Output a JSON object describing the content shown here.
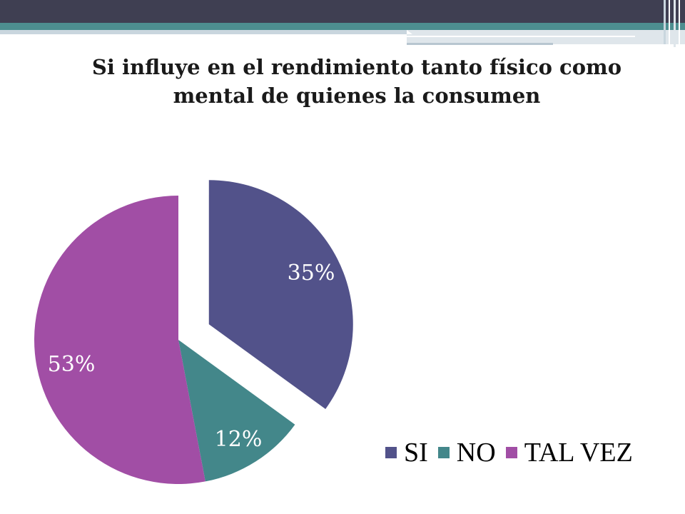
{
  "colors": {
    "banner_dark": "#3f3f52",
    "banner_teal": "#4d8e90",
    "banner_light": "#c9d6de"
  },
  "chart_data": {
    "type": "pie",
    "title": "Si influye en el rendimiento tanto físico como mental de quienes la consumen",
    "slices": [
      {
        "label": "SI",
        "value": 35,
        "data_label": "35%",
        "color": "#52528a",
        "exploded": true
      },
      {
        "label": "NO",
        "value": 12,
        "data_label": "12%",
        "color": "#43878a",
        "exploded": false
      },
      {
        "label": "TAL VEZ",
        "value": 53,
        "data_label": "53%",
        "color": "#a14ea5",
        "exploded": false
      }
    ],
    "legend_position": "bottom-right"
  }
}
